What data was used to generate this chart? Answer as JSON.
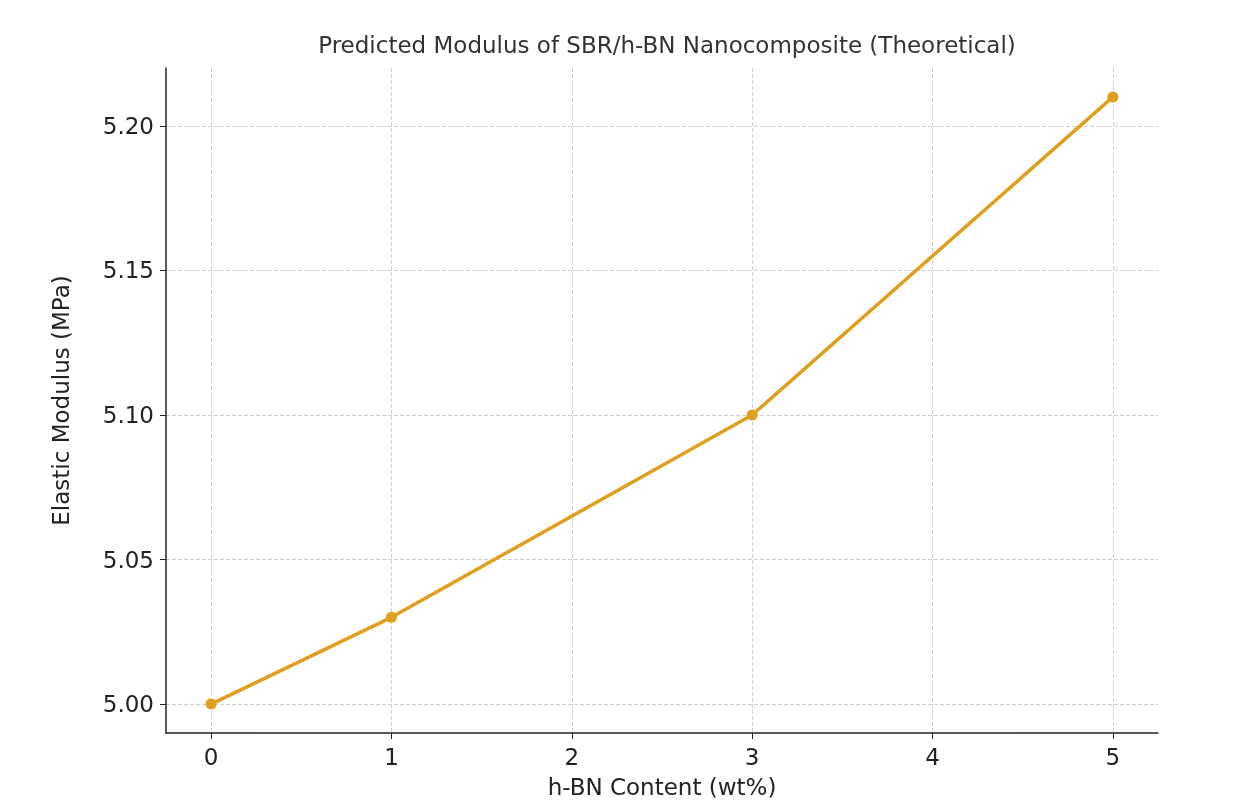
{
  "chart_data": {
    "type": "line",
    "title": "Predicted Modulus of SBR/h-BN Nanocomposite (Theoretical)",
    "xlabel": "h-BN Content (wt%)",
    "ylabel": "Elastic Modulus (MPa)",
    "x": [
      0,
      1,
      3,
      5
    ],
    "series": [
      {
        "color": "#e09f1e",
        "values": [
          5.0,
          5.03,
          5.1,
          5.21
        ]
      }
    ],
    "xlim": [
      -0.25,
      5.25
    ],
    "xticks": [
      0,
      1,
      2,
      3,
      4,
      5
    ],
    "ylim": [
      4.99,
      5.22
    ],
    "yticks": [
      {
        "value": 5.0,
        "label": "5.00"
      },
      {
        "value": 5.05,
        "label": "5.05"
      },
      {
        "value": 5.1,
        "label": "5.10"
      },
      {
        "value": 5.15,
        "label": "5.15"
      },
      {
        "value": 5.2,
        "label": "5.20"
      }
    ],
    "grid": true,
    "marker": "circle",
    "line_style": "solid"
  }
}
